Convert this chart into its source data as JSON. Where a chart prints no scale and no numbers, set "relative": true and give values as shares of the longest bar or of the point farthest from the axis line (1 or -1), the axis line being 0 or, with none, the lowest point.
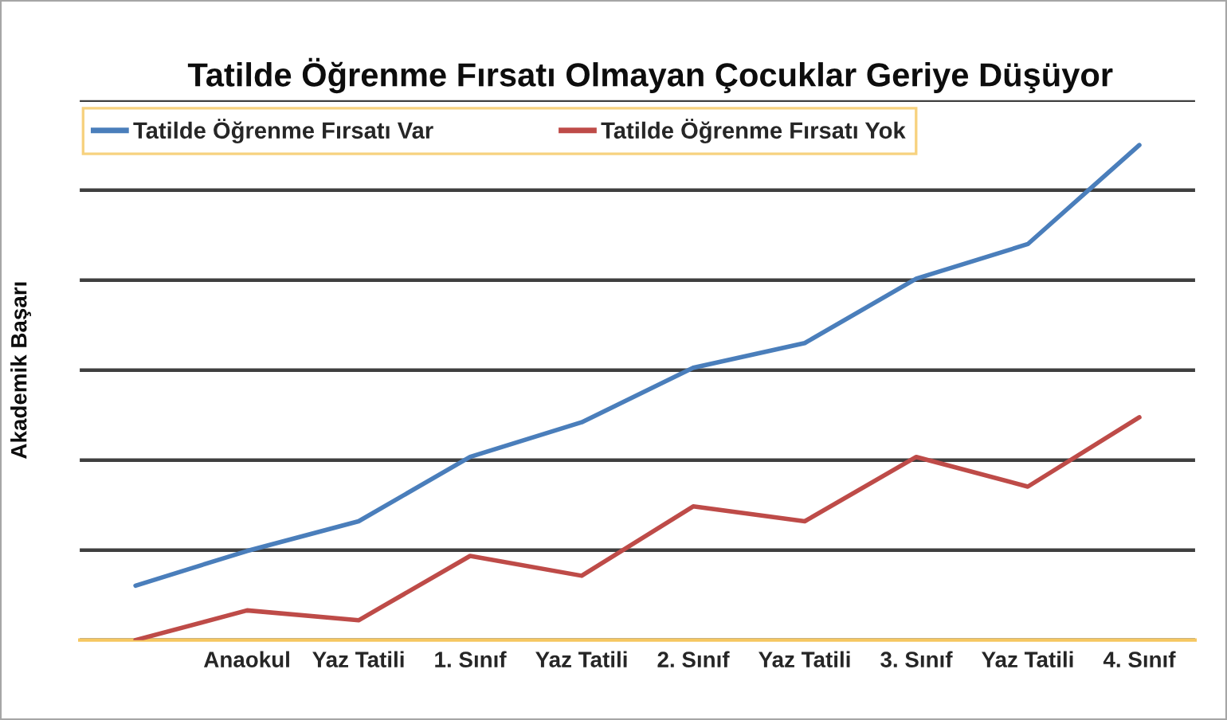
{
  "chart_data": {
    "type": "line",
    "title": "Tatilde Öğrenme Fırsatı Olmayan Çocuklar Geriye Düşüyor",
    "ylabel": "Akademik Başarı",
    "categories": [
      null,
      "Anaokul",
      "Yaz Tatili",
      "1. Sınıf",
      "Yaz Tatili",
      "2. Sınıf",
      "Yaz Tatili",
      "3. Sınıf",
      "Yaz Tatili",
      "4. Sınıf"
    ],
    "series": [
      {
        "name": "Tatilde Öğrenme Fırsatı Var",
        "color": "#4a7ebb",
        "values": [
          0.11,
          0.18,
          0.24,
          0.37,
          0.44,
          0.55,
          0.6,
          0.73,
          0.8,
          1
        ]
      },
      {
        "name": "Tatilde Öğrenme Fırsatı Yok",
        "color": "#be4b48",
        "values": [
          0,
          0.06,
          0.04,
          0.17,
          0.13,
          0.27,
          0.24,
          0.37,
          0.31,
          0.45
        ]
      }
    ],
    "relative": true,
    "grid": "y",
    "legend": "top"
  }
}
